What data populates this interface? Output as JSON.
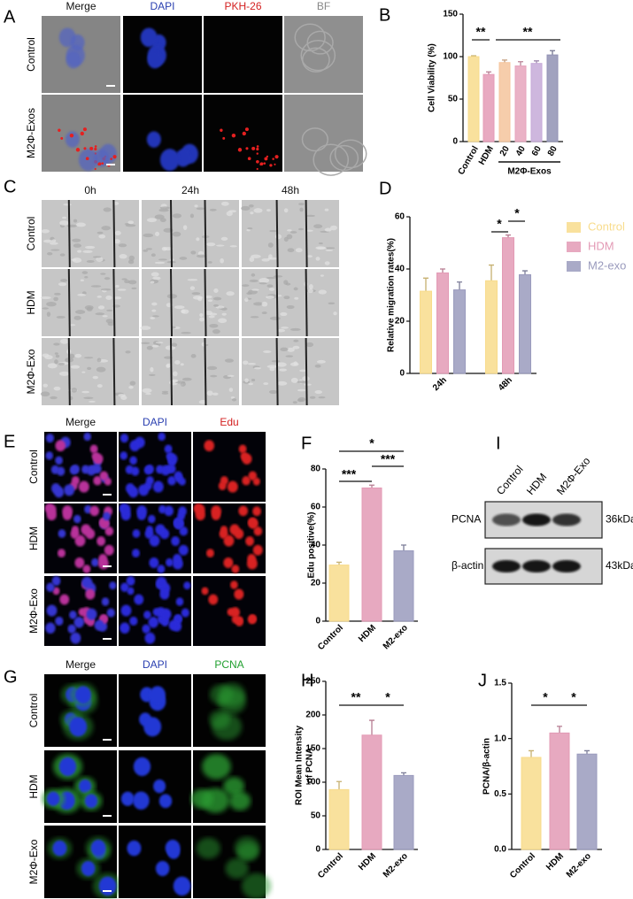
{
  "panel_labels": [
    "A",
    "B",
    "C",
    "D",
    "E",
    "F",
    "G",
    "H",
    "I",
    "J"
  ],
  "image_panels": [
    {
      "columns": [
        "Merge",
        "DAPI",
        "PKH-26",
        "BF"
      ],
      "rows": [
        "Control",
        "M2Φ-Exos"
      ]
    },
    {
      "columns": [
        "0h",
        "24h",
        "48h"
      ],
      "rows": [
        "Control",
        "HDM",
        "M2Φ-Exo"
      ]
    },
    {
      "columns": [
        "Merge",
        "DAPI",
        "Edu"
      ],
      "rows": [
        "Control",
        "HDM",
        "M2Φ-Exo"
      ]
    },
    {
      "columns": [
        "Merge",
        "DAPI",
        "PCNA"
      ],
      "rows": [
        "Control",
        "HDM",
        "M2Φ-Exo"
      ]
    }
  ],
  "western_blot": {
    "lanes": [
      "Control",
      "HDM",
      "M2Φ-Exo"
    ],
    "bands": [
      {
        "name": "PCNA",
        "size": "36kDa"
      },
      {
        "name": "β-actin",
        "size": "43kDa"
      }
    ]
  },
  "chart_data": [
    {
      "type": "bar",
      "ylabel": "Cell Viability (%)",
      "categories": [
        "Control",
        "HDM",
        "20",
        "40",
        "60",
        "80"
      ],
      "values": [
        100,
        79,
        93,
        89,
        92,
        102
      ],
      "errors": [
        1,
        3,
        3,
        5,
        3,
        5
      ],
      "colors": [
        "#f8dc8c",
        "#e49ab6",
        "#f5c49c",
        "#e6a4bc",
        "#c6aad8",
        "#9192b4"
      ],
      "ylim": [
        0,
        150
      ],
      "yticks": [
        0,
        50,
        100,
        150
      ],
      "group_label": "M2Φ-Exos",
      "annotations": [
        "**",
        "**"
      ]
    },
    {
      "type": "bar",
      "ylabel": "Relative migration rates(%)",
      "categories": [
        "24h",
        "48h"
      ],
      "series": [
        {
          "name": "Control",
          "color": "#f8dc8c",
          "values": [
            31.5,
            35.5
          ],
          "errors": [
            5,
            6
          ]
        },
        {
          "name": "HDM",
          "color": "#e39ab5",
          "values": [
            38.5,
            52
          ],
          "errors": [
            1.5,
            1
          ]
        },
        {
          "name": "M2-exo",
          "color": "#9a9bbd",
          "values": [
            32,
            37.8
          ],
          "errors": [
            3,
            1.5
          ]
        }
      ],
      "ylim": [
        0,
        60
      ],
      "yticks": [
        0,
        20,
        40,
        60
      ],
      "legend": "right",
      "annotations": [
        "*",
        "*"
      ]
    },
    {
      "type": "bar",
      "ylabel": "Edu positive(%)",
      "categories": [
        "Control",
        "HDM",
        "M2-exo"
      ],
      "values": [
        29.5,
        70,
        37
      ],
      "errors": [
        1.5,
        1.5,
        3
      ],
      "colors": [
        "#f8dc8c",
        "#e39ab5",
        "#9a9bbd"
      ],
      "ylim": [
        0,
        80
      ],
      "yticks": [
        0,
        20,
        40,
        60,
        80
      ],
      "annotations": [
        "***",
        "***",
        "*"
      ]
    },
    {
      "type": "bar",
      "ylabel": [
        "ROI Mean Intensity",
        "of PCNA"
      ],
      "categories": [
        "Control",
        "HDM",
        "M2-exo"
      ],
      "values": [
        89,
        170,
        110
      ],
      "errors": [
        12,
        22,
        4
      ],
      "colors": [
        "#f8dc8c",
        "#e39ab5",
        "#9a9bbd"
      ],
      "ylim": [
        0,
        250
      ],
      "yticks": [
        0,
        50,
        100,
        150,
        200,
        250
      ],
      "annotations": [
        "**",
        "*"
      ]
    },
    {
      "type": "bar",
      "ylabel": "PCNA/β-actin",
      "categories": [
        "Control",
        "HDM",
        "M2-exo"
      ],
      "values": [
        0.83,
        1.05,
        0.86
      ],
      "errors": [
        0.06,
        0.06,
        0.03
      ],
      "colors": [
        "#f8dc8c",
        "#e39ab5",
        "#9a9bbd"
      ],
      "ylim": [
        0,
        1.5
      ],
      "yticks": [
        {
          "value": 0,
          "label": "0.0"
        },
        0.5,
        {
          "value": 1,
          "label": "1.0"
        },
        1.5
      ],
      "annotations": [
        "*",
        "*"
      ]
    }
  ]
}
